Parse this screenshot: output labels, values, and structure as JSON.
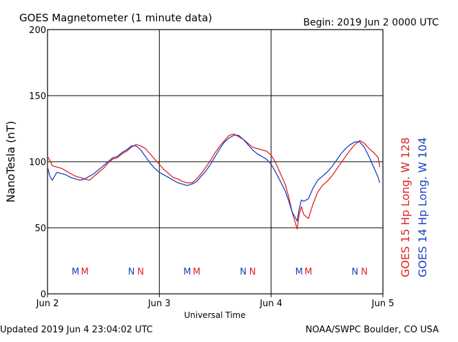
{
  "header": {
    "title": "GOES Magnetometer (1 minute data)",
    "begin": "Begin:  2019 Jun 2 0000 UTC"
  },
  "footer": {
    "updated": "Updated 2019 Jun  4 23:04:02 UTC",
    "credit": "NOAA/SWPC Boulder, CO USA"
  },
  "colors": {
    "goes15": "#e02020",
    "goes14": "#1a3fc0",
    "grid": "#000000"
  },
  "chart_data": {
    "type": "line",
    "ylabel": "NanoTesla (nT)",
    "xlabel": "Universal Time",
    "ylim": [
      0,
      200
    ],
    "yticks": [
      "0",
      "50",
      "100",
      "150",
      "200"
    ],
    "xlim": [
      0,
      72
    ],
    "xticks": [
      {
        "x": 0,
        "label": "Jun 2"
      },
      {
        "x": 24,
        "label": "Jun 3"
      },
      {
        "x": 48,
        "label": "Jun 4"
      },
      {
        "x": 72,
        "label": "Jun 5"
      }
    ],
    "grid": true,
    "markers": [
      {
        "x": 6,
        "label": "M",
        "color": "#1a3fc0"
      },
      {
        "x": 8,
        "label": "M",
        "color": "#e02020"
      },
      {
        "x": 18,
        "label": "N",
        "color": "#1a3fc0"
      },
      {
        "x": 20,
        "label": "N",
        "color": "#e02020"
      },
      {
        "x": 30,
        "label": "M",
        "color": "#1a3fc0"
      },
      {
        "x": 32,
        "label": "M",
        "color": "#e02020"
      },
      {
        "x": 42,
        "label": "N",
        "color": "#1a3fc0"
      },
      {
        "x": 44,
        "label": "N",
        "color": "#e02020"
      },
      {
        "x": 54,
        "label": "M",
        "color": "#1a3fc0"
      },
      {
        "x": 56,
        "label": "M",
        "color": "#e02020"
      },
      {
        "x": 66,
        "label": "N",
        "color": "#1a3fc0"
      },
      {
        "x": 68,
        "label": "N",
        "color": "#e02020"
      }
    ],
    "series": [
      {
        "name": "GOES 15 Hp  Long. W 128",
        "color": "#e02020",
        "x": [
          0,
          0.5,
          1,
          2,
          3,
          4,
          5,
          6,
          7,
          8,
          9,
          10,
          11,
          12,
          13,
          14,
          15,
          16,
          17,
          18,
          19,
          20,
          21,
          22,
          23,
          24,
          25,
          26,
          27,
          28,
          29,
          30,
          31,
          32,
          33,
          34,
          35,
          36,
          37,
          38,
          39,
          40,
          41,
          42,
          43,
          44,
          45,
          46,
          47,
          48,
          49,
          50,
          51,
          51.8,
          52.5,
          53,
          53.6,
          54,
          54.5,
          55,
          56,
          57,
          58,
          59,
          60,
          61,
          62,
          63,
          64,
          65,
          66,
          67,
          68,
          69,
          70,
          71,
          71.3
        ],
        "y": [
          104,
          101,
          97,
          96,
          95,
          93,
          91,
          89,
          88,
          87,
          86,
          89,
          92,
          95,
          99,
          102,
          103,
          106,
          108,
          111,
          113,
          112,
          110,
          106,
          102,
          98,
          94,
          91,
          88,
          87,
          85,
          84,
          84,
          87,
          91,
          96,
          101,
          107,
          112,
          116,
          120,
          121,
          119,
          117,
          114,
          111,
          110,
          109,
          108,
          105,
          99,
          91,
          83,
          73,
          62,
          56,
          49,
          60,
          66,
          60,
          57,
          68,
          77,
          82,
          85,
          89,
          94,
          99,
          104,
          109,
          113,
          116,
          114,
          110,
          107,
          103,
          96
        ]
      },
      {
        "name": "GOES 14 Hp  Long. W 104",
        "color": "#1a3fc0",
        "x": [
          0,
          0.5,
          1,
          2,
          3,
          4,
          5,
          6,
          7,
          8,
          9,
          10,
          11,
          12,
          13,
          14,
          15,
          16,
          17,
          18,
          19,
          20,
          21,
          22,
          23,
          24,
          25,
          26,
          27,
          28,
          29,
          30,
          31,
          32,
          33,
          34,
          35,
          36,
          37,
          38,
          39,
          40,
          41,
          42,
          43,
          44,
          45,
          46,
          47,
          48,
          49,
          50,
          51,
          51.8,
          52.5,
          53,
          53.6,
          54,
          54.5,
          55,
          56,
          57,
          58,
          59,
          60,
          61,
          62,
          63,
          64,
          65,
          66,
          67,
          68,
          69,
          70,
          71,
          71.3
        ],
        "y": [
          96,
          89,
          86,
          92,
          91,
          90,
          88,
          87,
          86,
          87,
          89,
          91,
          94,
          97,
          100,
          103,
          104,
          107,
          109,
          112,
          112,
          109,
          104,
          99,
          95,
          92,
          90,
          88,
          86,
          84,
          83,
          82,
          83,
          85,
          89,
          93,
          98,
          104,
          110,
          115,
          118,
          120,
          120,
          117,
          113,
          109,
          106,
          104,
          102,
          98,
          92,
          85,
          78,
          70,
          62,
          59,
          55,
          64,
          71,
          70,
          72,
          80,
          86,
          89,
          92,
          96,
          101,
          106,
          110,
          113,
          115,
          115,
          111,
          104,
          96,
          88,
          84
        ]
      }
    ]
  }
}
